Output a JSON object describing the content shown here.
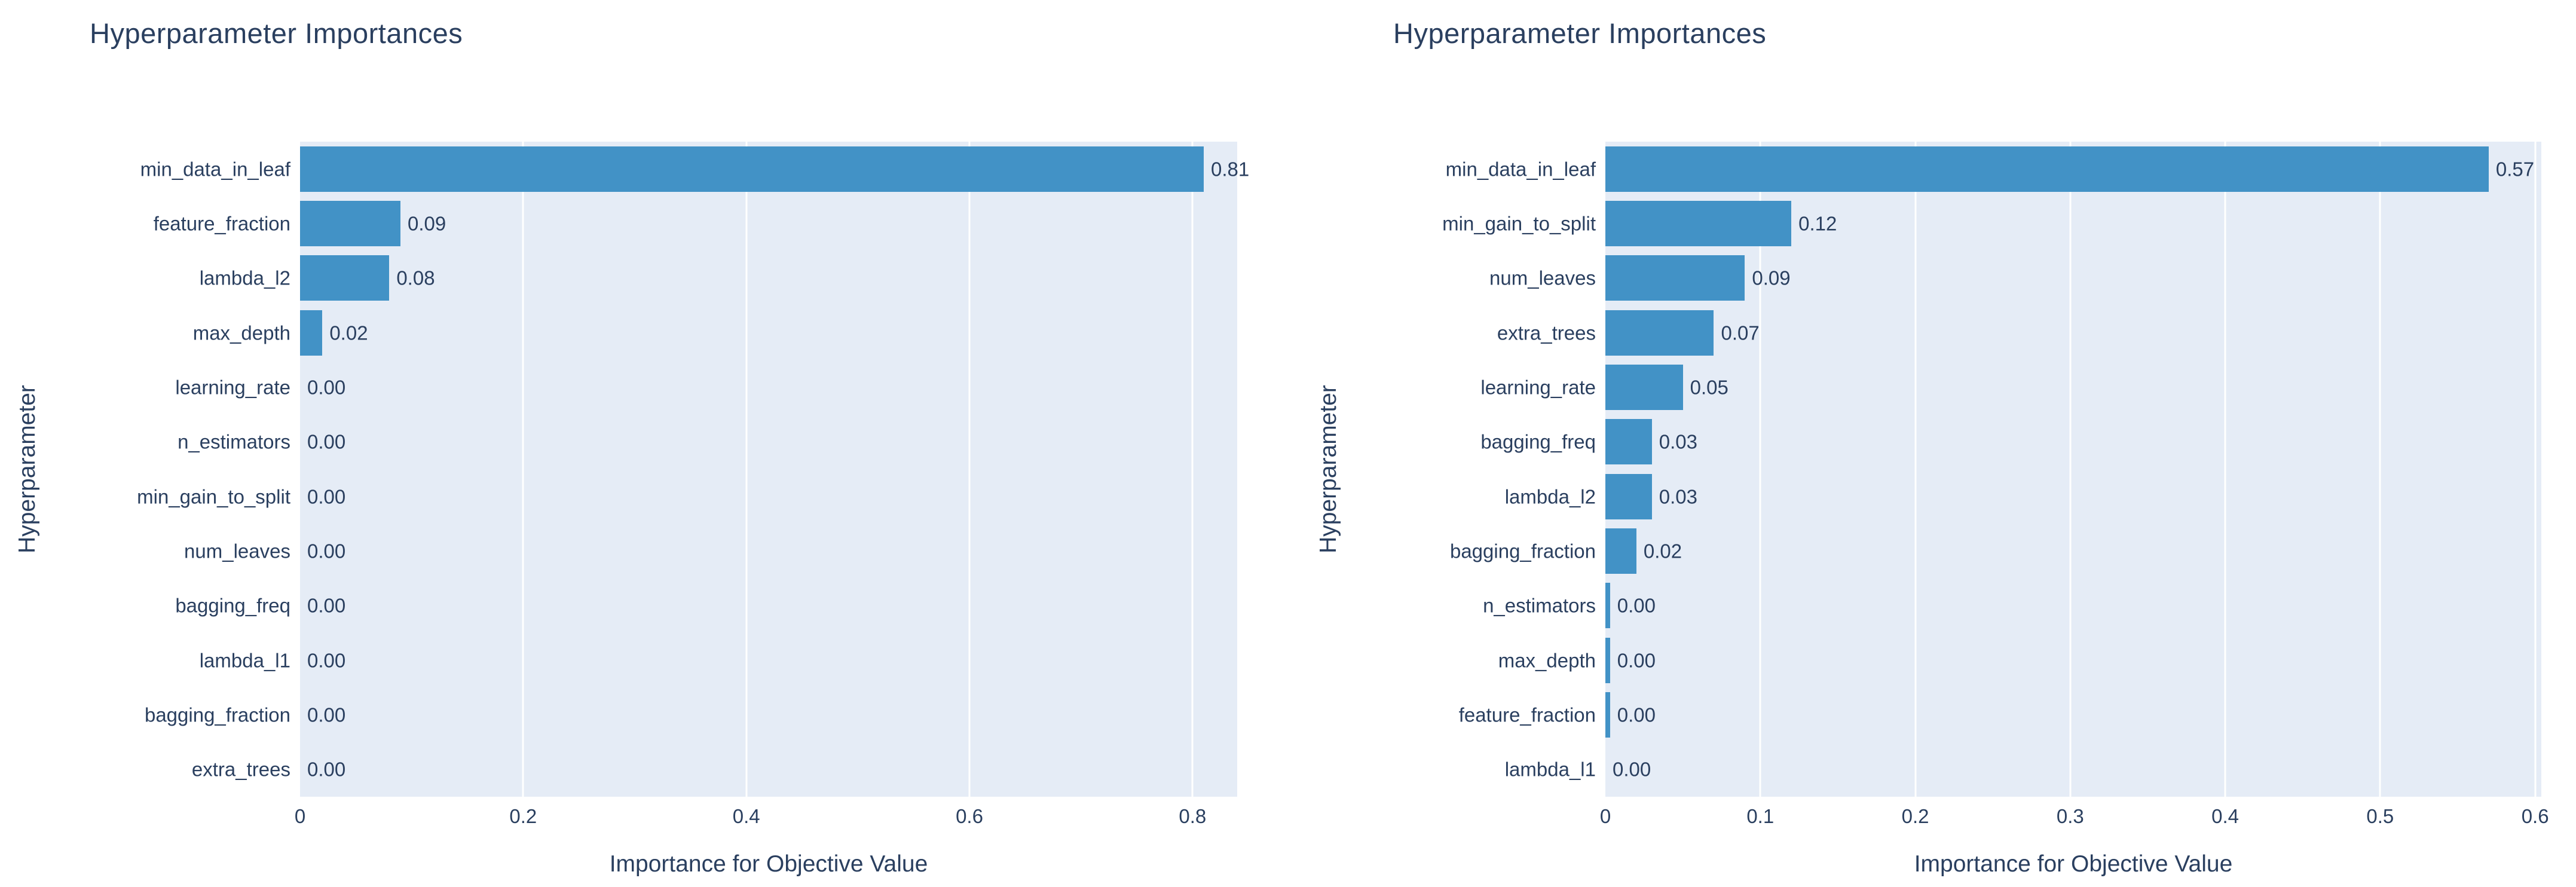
{
  "accent_color": "#4292c6",
  "plot_background_color": "#e5ecf6",
  "gridline_color": "#ffffff",
  "text_color": "#2a3f5f",
  "chart_data": [
    {
      "type": "bar",
      "orientation": "horizontal",
      "title": "Hyperparameter Importances",
      "xlabel": "Importance for Objective Value",
      "ylabel": "Hyperparameter",
      "categories": [
        "min_data_in_leaf",
        "feature_fraction",
        "lambda_l2",
        "max_depth",
        "learning_rate",
        "n_estimators",
        "min_gain_to_split",
        "num_leaves",
        "bagging_freq",
        "lambda_l1",
        "bagging_fraction",
        "extra_trees"
      ],
      "values": [
        0.81,
        0.09,
        0.08,
        0.02,
        0,
        0,
        0,
        0,
        0,
        0,
        0,
        0
      ],
      "value_labels": [
        "0.81",
        "0.09",
        "0.08",
        "0.02",
        "0.00",
        "0.00",
        "0.00",
        "0.00",
        "0.00",
        "0.00",
        "0.00",
        "0.00"
      ],
      "xlim": [
        0,
        0.84
      ],
      "xticks": [
        0,
        0.2,
        0.4,
        0.6,
        0.8
      ],
      "xtick_labels": [
        "0",
        "0.2",
        "0.4",
        "0.6",
        "0.8"
      ],
      "grid": true,
      "legend": false
    },
    {
      "type": "bar",
      "orientation": "horizontal",
      "title": "Hyperparameter Importances",
      "xlabel": "Importance for Objective Value",
      "ylabel": "Hyperparameter",
      "categories": [
        "min_data_in_leaf",
        "min_gain_to_split",
        "num_leaves",
        "extra_trees",
        "learning_rate",
        "bagging_freq",
        "lambda_l2",
        "bagging_fraction",
        "n_estimators",
        "max_depth",
        "feature_fraction",
        "lambda_l1"
      ],
      "values": [
        0.57,
        0.12,
        0.09,
        0.07,
        0.05,
        0.03,
        0.03,
        0.02,
        0.003,
        0.003,
        0.003,
        0
      ],
      "value_labels": [
        "0.57",
        "0.12",
        "0.09",
        "0.07",
        "0.05",
        "0.03",
        "0.03",
        "0.02",
        "0.00",
        "0.00",
        "0.00",
        "0.00"
      ],
      "xlim": [
        0,
        0.604
      ],
      "xticks": [
        0,
        0.1,
        0.2,
        0.3,
        0.4,
        0.5,
        0.6
      ],
      "xtick_labels": [
        "0",
        "0.1",
        "0.2",
        "0.3",
        "0.4",
        "0.5",
        "0.6"
      ],
      "grid": true,
      "legend": false
    }
  ]
}
